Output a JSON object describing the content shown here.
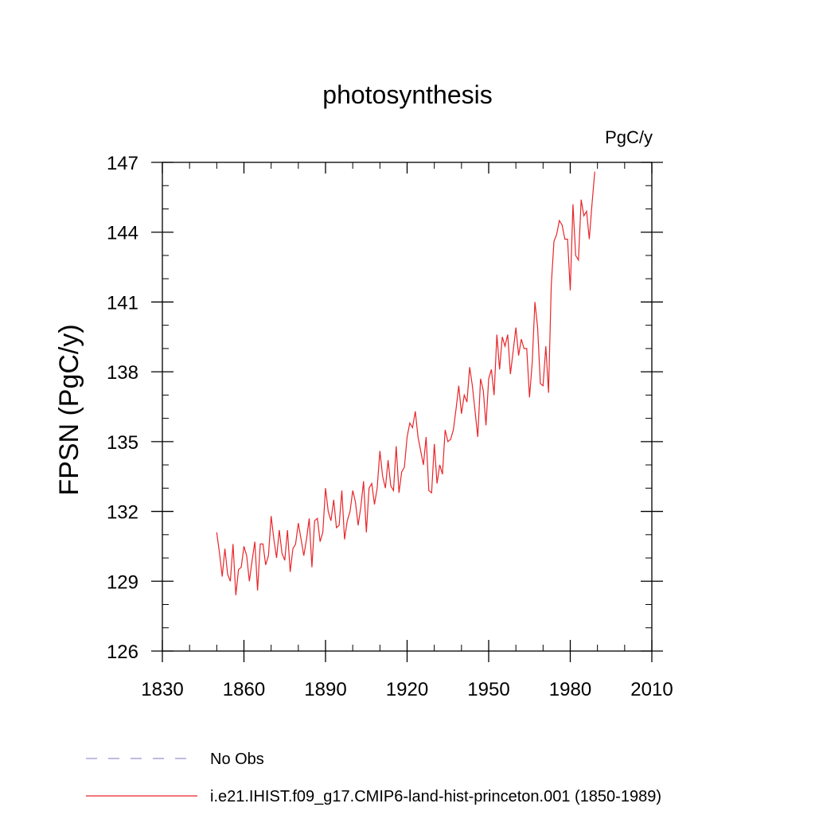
{
  "chart_data": {
    "type": "line",
    "title": "photosynthesis",
    "units_label": "PgC/y",
    "ylabel": "FPSN  (PgC/y)",
    "xlabel": "",
    "xlim": [
      1830,
      2010
    ],
    "ylim": [
      126,
      147
    ],
    "xticks": [
      1830,
      1860,
      1890,
      1920,
      1950,
      1980,
      2010
    ],
    "yticks": [
      126,
      129,
      132,
      135,
      138,
      141,
      144,
      147
    ],
    "x_tick_labels": [
      "1830",
      "1860",
      "1890",
      "1920",
      "1950",
      "1980",
      "2010"
    ],
    "y_tick_labels": [
      "126",
      "129",
      "132",
      "135",
      "138",
      "141",
      "144",
      "147"
    ],
    "grid": false,
    "legend_position": "bottom",
    "legend": [
      {
        "name": "No Obs",
        "color": "#9a8fd0",
        "style": "dashed"
      },
      {
        "name": "i.e21.IHIST.f09_g17.CMIP6-land-hist-princeton.001 (1850-1989)",
        "color": "#e8262a",
        "style": "solid"
      }
    ],
    "series": [
      {
        "name": "i.e21.IHIST.f09_g17.CMIP6-land-hist-princeton.001 (1850-1989)",
        "color": "#e8262a",
        "x_start": 1850,
        "x_step": 1,
        "values": [
          131.1,
          130.2,
          129.2,
          130.4,
          129.3,
          129.0,
          130.6,
          128.4,
          129.5,
          129.6,
          130.5,
          130.1,
          129.0,
          129.9,
          130.7,
          128.6,
          130.6,
          130.6,
          129.7,
          130.1,
          131.8,
          130.8,
          130.0,
          131.2,
          130.2,
          129.9,
          131.2,
          129.4,
          130.4,
          130.6,
          131.5,
          130.8,
          130.1,
          130.8,
          131.7,
          129.6,
          131.6,
          131.7,
          130.7,
          131.1,
          133.0,
          132.0,
          131.6,
          132.5,
          131.3,
          131.4,
          132.9,
          130.8,
          131.6,
          132.0,
          132.9,
          132.4,
          131.4,
          132.2,
          133.3,
          131.1,
          133.0,
          133.2,
          132.3,
          133.0,
          134.6,
          133.5,
          133.0,
          134.2,
          133.1,
          132.9,
          134.8,
          132.8,
          133.7,
          133.9,
          135.2,
          135.8,
          135.6,
          136.3,
          135.2,
          134.6,
          134.0,
          135.2,
          132.9,
          132.8,
          134.9,
          133.2,
          134.0,
          133.6,
          135.5,
          135.0,
          135.1,
          135.5,
          136.4,
          137.4,
          136.2,
          137.0,
          136.7,
          138.2,
          137.4,
          136.3,
          135.2,
          137.7,
          137.2,
          135.7,
          137.7,
          138.1,
          137.0,
          139.6,
          138.1,
          139.5,
          139.1,
          139.6,
          137.9,
          138.9,
          139.9,
          138.7,
          139.4,
          139.0,
          139.0,
          136.9,
          138.4,
          141.0,
          139.9,
          137.5,
          137.4,
          139.1,
          137.1,
          141.7,
          143.6,
          143.9,
          144.5,
          144.3,
          143.7,
          143.7,
          141.5,
          145.2,
          143.0,
          142.8,
          145.4,
          144.7,
          144.9,
          143.7,
          145.2,
          146.6
        ]
      }
    ]
  }
}
